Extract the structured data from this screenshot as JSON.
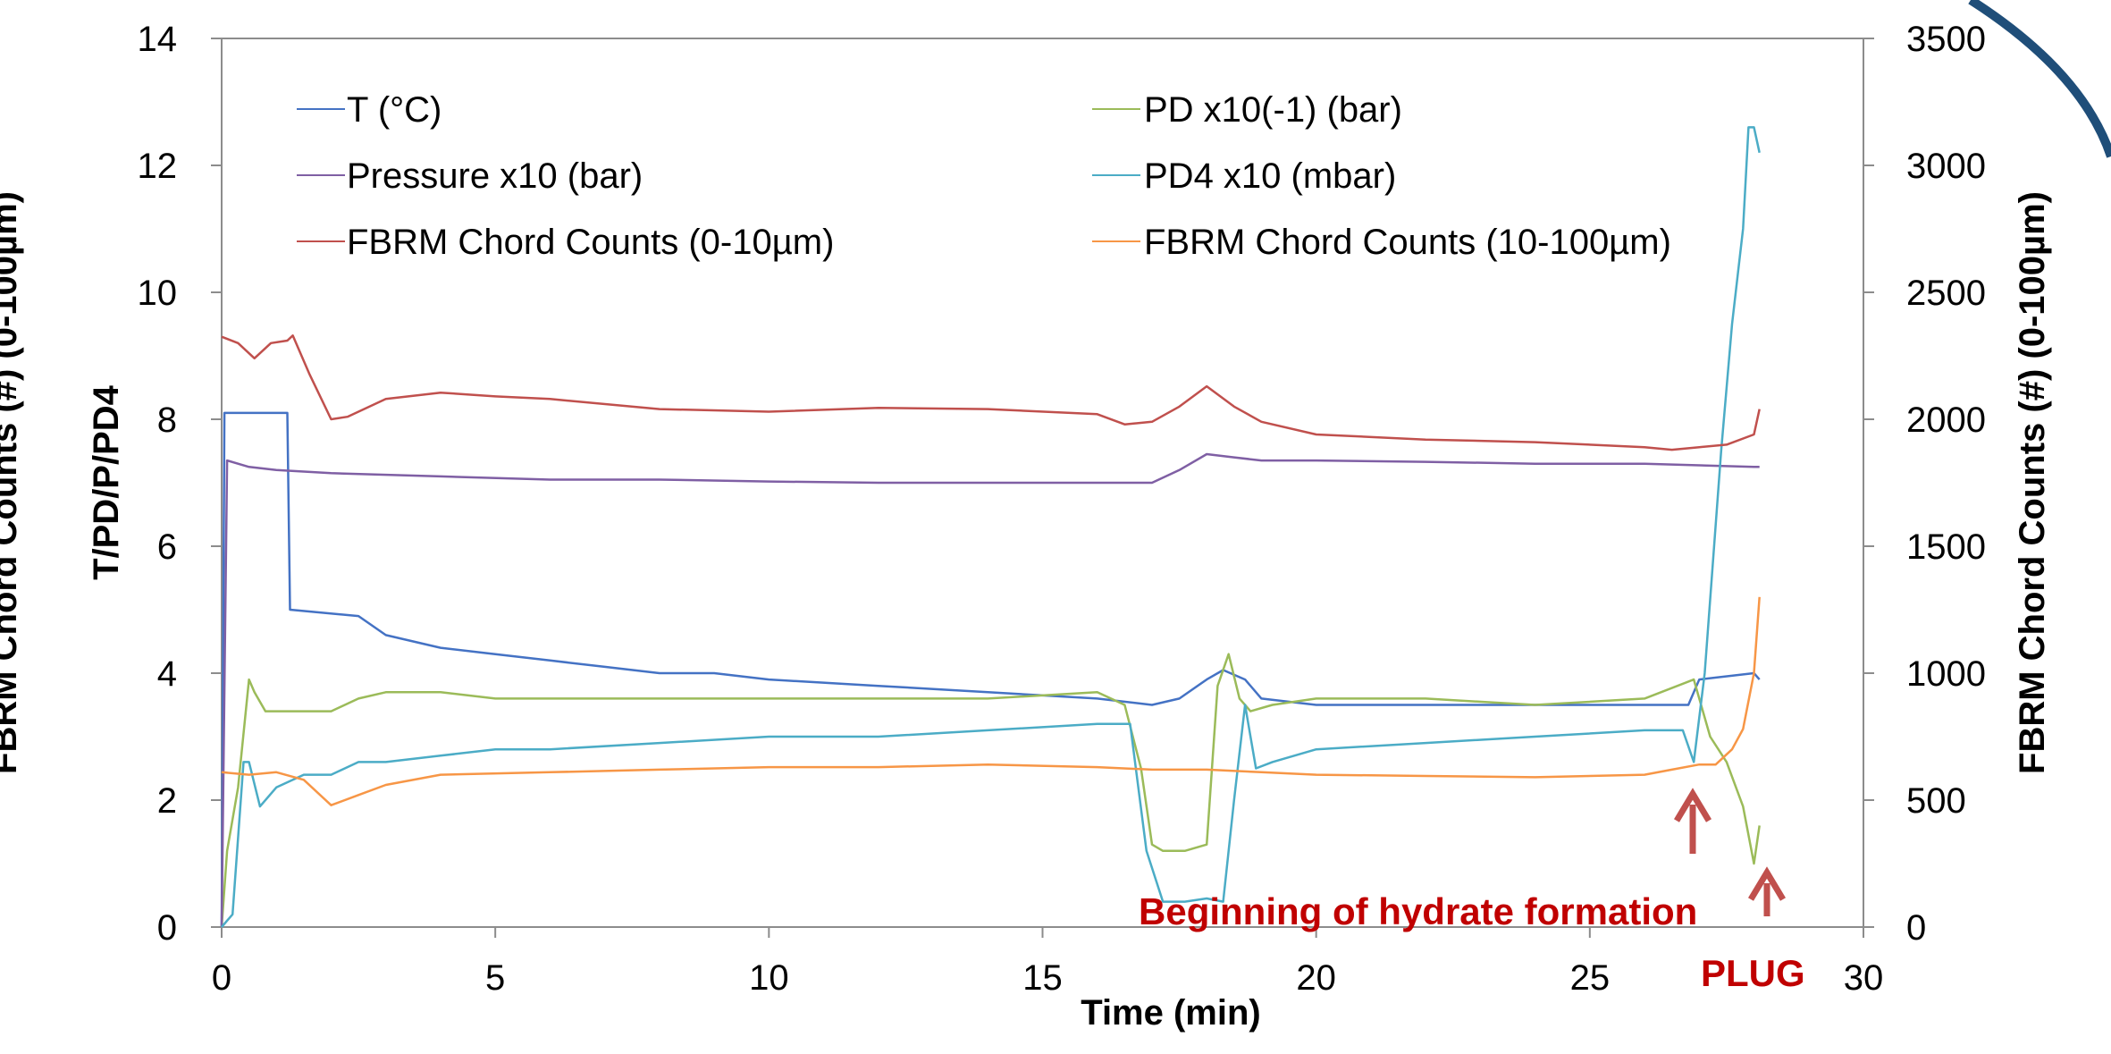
{
  "chart_data": {
    "type": "line",
    "xlabel": "Time (min)",
    "ylabel_left": "T/PD/P/PD4",
    "ylabel_right": "FBRM Chord Counts (#) (0-100µm)",
    "ylabel_left_outer": "FBRM Chord Counts (#) (0-100µm)",
    "xlim": [
      0,
      30
    ],
    "ylim_left": [
      0,
      14
    ],
    "ylim_right": [
      0,
      3500
    ],
    "x_ticks": [
      "0",
      "5",
      "10",
      "15",
      "20",
      "25",
      "30"
    ],
    "y_left_ticks": [
      "0",
      "2",
      "4",
      "6",
      "8",
      "10",
      "12",
      "14"
    ],
    "y_right_ticks": [
      "0",
      "500",
      "1000",
      "1500",
      "2000",
      "2500",
      "3000",
      "3500"
    ],
    "grid": false,
    "legend_position": "top",
    "series": [
      {
        "name": "T (°C)",
        "axis": "left",
        "color": "#4472c4",
        "x": [
          0,
          0.05,
          0.1,
          1.2,
          1.25,
          2.5,
          3,
          4,
          5,
          6,
          7,
          8,
          9,
          10,
          12,
          14,
          16,
          17,
          17.5,
          18,
          18.3,
          18.7,
          19,
          20,
          22,
          24,
          26,
          26.8,
          27,
          28,
          28.1
        ],
        "y": [
          0,
          8.1,
          8.1,
          8.1,
          5,
          4.9,
          4.6,
          4.4,
          4.3,
          4.2,
          4.1,
          4.0,
          4.0,
          3.9,
          3.8,
          3.7,
          3.6,
          3.5,
          3.6,
          3.9,
          4.05,
          3.9,
          3.6,
          3.5,
          3.5,
          3.5,
          3.5,
          3.5,
          3.9,
          4.0,
          3.9
        ]
      },
      {
        "name": "PD x10(-1) (bar)",
        "axis": "left",
        "color": "#9bbb59",
        "x": [
          0,
          0.1,
          0.3,
          0.5,
          0.6,
          0.8,
          1,
          2,
          2.5,
          3,
          4,
          5,
          6,
          8,
          10,
          12,
          14,
          16,
          16.5,
          16.8,
          17,
          17.2,
          17.6,
          18,
          18.2,
          18.4,
          18.6,
          18.8,
          19.2,
          20,
          22,
          24,
          26,
          26.9,
          27.2,
          27.5,
          27.8,
          28,
          28.1
        ],
        "y": [
          0,
          1.2,
          2.2,
          3.9,
          3.7,
          3.4,
          3.4,
          3.4,
          3.6,
          3.7,
          3.7,
          3.6,
          3.6,
          3.6,
          3.6,
          3.6,
          3.6,
          3.7,
          3.5,
          2.5,
          1.3,
          1.2,
          1.2,
          1.3,
          3.8,
          4.3,
          3.6,
          3.4,
          3.5,
          3.6,
          3.6,
          3.5,
          3.6,
          3.9,
          3.0,
          2.6,
          1.9,
          1.0,
          1.6
        ]
      },
      {
        "name": "Pressure x10 (bar)",
        "axis": "left",
        "color": "#7f5fa4",
        "x": [
          0,
          0.1,
          0.5,
          1,
          2,
          4,
          6,
          8,
          10,
          12,
          14,
          16,
          17,
          17.5,
          18,
          18.5,
          19,
          20,
          22,
          24,
          26,
          28,
          28.1
        ],
        "y": [
          0,
          7.35,
          7.25,
          7.2,
          7.15,
          7.1,
          7.05,
          7.05,
          7.02,
          7.0,
          7.0,
          7.0,
          7.0,
          7.2,
          7.45,
          7.4,
          7.35,
          7.35,
          7.33,
          7.3,
          7.3,
          7.25,
          7.25
        ]
      },
      {
        "name": "PD4 x10 (mbar)",
        "axis": "left",
        "color": "#4bacc6",
        "x": [
          0,
          0.2,
          0.4,
          0.5,
          0.7,
          1,
          1.5,
          2,
          2.5,
          3,
          4,
          5,
          6,
          8,
          10,
          12,
          14,
          16,
          16.6,
          16.9,
          17.2,
          17.6,
          18,
          18.3,
          18.5,
          18.7,
          18.9,
          19.2,
          20,
          22,
          24,
          26,
          26.7,
          26.9,
          27.1,
          27.4,
          27.6,
          27.8,
          27.9,
          28,
          28.1
        ],
        "y": [
          0,
          0.2,
          2.6,
          2.6,
          1.9,
          2.2,
          2.4,
          2.4,
          2.6,
          2.6,
          2.7,
          2.8,
          2.8,
          2.9,
          3.0,
          3.0,
          3.1,
          3.2,
          3.2,
          1.2,
          0.4,
          0.4,
          0.45,
          0.4,
          2.0,
          3.5,
          2.5,
          2.6,
          2.8,
          2.9,
          3.0,
          3.1,
          3.1,
          2.6,
          4.0,
          7.5,
          9.5,
          11.0,
          12.6,
          12.6,
          12.2
        ]
      },
      {
        "name": "FBRM Chord Counts (0-10µm)",
        "axis": "right",
        "color": "#c0504d",
        "x": [
          0,
          0.3,
          0.6,
          0.9,
          1.2,
          1.3,
          1.6,
          2,
          2.3,
          3,
          4,
          5,
          6,
          8,
          10,
          12,
          14,
          16,
          16.5,
          17,
          17.5,
          18,
          18.5,
          19,
          20,
          22,
          24,
          26,
          26.5,
          27,
          27.5,
          28,
          28.1
        ],
        "y": [
          2325,
          2300,
          2240,
          2300,
          2310,
          2330,
          2180,
          2000,
          2010,
          2080,
          2105,
          2090,
          2080,
          2040,
          2030,
          2045,
          2040,
          2020,
          1980,
          1990,
          2050,
          2130,
          2050,
          1990,
          1940,
          1920,
          1910,
          1890,
          1880,
          1890,
          1900,
          1940,
          2040
        ]
      },
      {
        "name": "FBRM Chord Counts (10-100µm)",
        "axis": "right",
        "color": "#f79646",
        "x": [
          0,
          0.5,
          1,
          1.5,
          2,
          2.5,
          3,
          4,
          6,
          8,
          10,
          12,
          14,
          16,
          17,
          18,
          19,
          20,
          22,
          24,
          26,
          26.5,
          27,
          27.3,
          27.6,
          27.8,
          28,
          28.1
        ],
        "y": [
          610,
          600,
          610,
          580,
          480,
          520,
          560,
          600,
          610,
          620,
          630,
          630,
          640,
          630,
          620,
          620,
          610,
          600,
          595,
          590,
          600,
          620,
          640,
          640,
          700,
          780,
          1000,
          1300
        ]
      }
    ],
    "annotations": [
      "Beginning of hydrate formation",
      "PLUG"
    ]
  }
}
